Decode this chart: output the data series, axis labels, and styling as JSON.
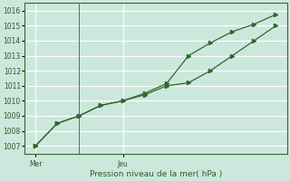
{
  "background_color": "#cce8dd",
  "plot_bg_color": "#cce8dd",
  "grid_color": "#ffffff",
  "line_color": "#2d6a2d",
  "marker_color": "#2d6a2d",
  "vline_color": "#666666",
  "xlabel": "Pression niveau de la mer( hPa )",
  "xlabel_color": "#2d5a2d",
  "tick_label_color": "#2d5a2d",
  "ylim": [
    1006.5,
    1016.5
  ],
  "yticks": [
    1007,
    1008,
    1009,
    1010,
    1011,
    1012,
    1013,
    1014,
    1015,
    1016
  ],
  "series1_x": [
    0,
    1,
    2,
    3,
    4,
    5,
    6,
    7,
    8,
    9,
    10,
    11
  ],
  "series1_y": [
    1007.0,
    1008.5,
    1009.0,
    1009.7,
    1010.0,
    1010.5,
    1011.15,
    1013.0,
    1013.85,
    1014.6,
    1015.1,
    1015.75
  ],
  "series2_x": [
    0,
    1,
    2,
    3,
    4,
    5,
    6,
    7,
    8,
    9,
    10,
    11
  ],
  "series2_y": [
    1007.0,
    1008.5,
    1009.0,
    1009.7,
    1010.0,
    1010.4,
    1011.0,
    1011.2,
    1012.0,
    1013.0,
    1014.0,
    1015.0
  ],
  "xlim": [
    -0.5,
    11.5
  ],
  "mer_x": 0,
  "jeu_x": 4,
  "vline_positions": [
    2.0
  ],
  "xtick_positions": [
    0,
    4
  ],
  "xtick_labels": [
    "Mer",
    "Jeu"
  ],
  "figsize": [
    3.2,
    2.0
  ],
  "dpi": 100
}
